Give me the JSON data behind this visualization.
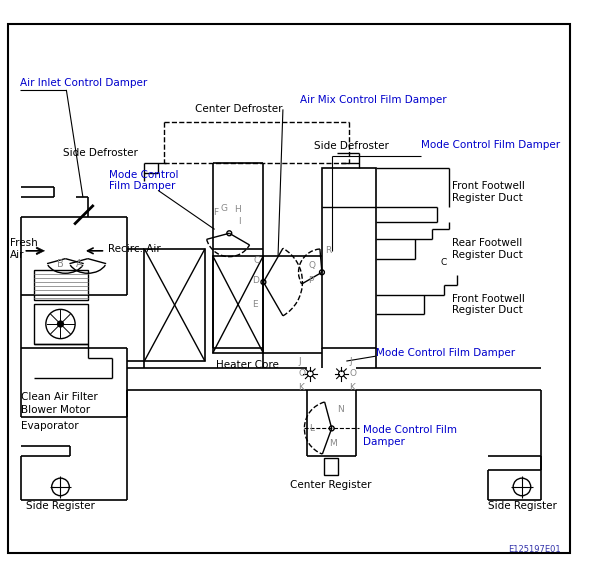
{
  "bg": "#ffffff",
  "blk": "#000000",
  "blue": "#0000cc",
  "gray": "#888888",
  "fig_w": 5.92,
  "fig_h": 5.68,
  "dpi": 100,
  "watermark": "E125197E01",
  "labels": {
    "air_inlet": "Air Inlet Control Damper",
    "center_def": "Center Defroster",
    "side_def_l": "Side Defroster",
    "side_def_r": "Side Defroster",
    "mode_ctl_ul": "Mode Control\nFilm Damper",
    "air_mix": "Air Mix Control Film Damper",
    "mode_ctl_ur": "Mode Control Film Damper",
    "fresh": "Fresh\nAir",
    "recirc": "Recirc. Air",
    "clean_filter": "Clean Air Filter",
    "blower": "Blower Motor",
    "evap": "Evaporator",
    "heater": "Heater Core",
    "front_fw_u": "Front Footwell\nRegister Duct",
    "rear_fw": "Rear Footwell\nRegister Duct",
    "front_fw_l": "Front Footwell\nRegister Duct",
    "mode_ctl_lc": "Mode Control Film\nDamper",
    "mode_ctl_lr": "Mode Control Film Damper",
    "side_reg_l": "Side Register",
    "side_reg_r": "Side Register",
    "center_reg": "Center Register",
    "c_label": "C"
  }
}
